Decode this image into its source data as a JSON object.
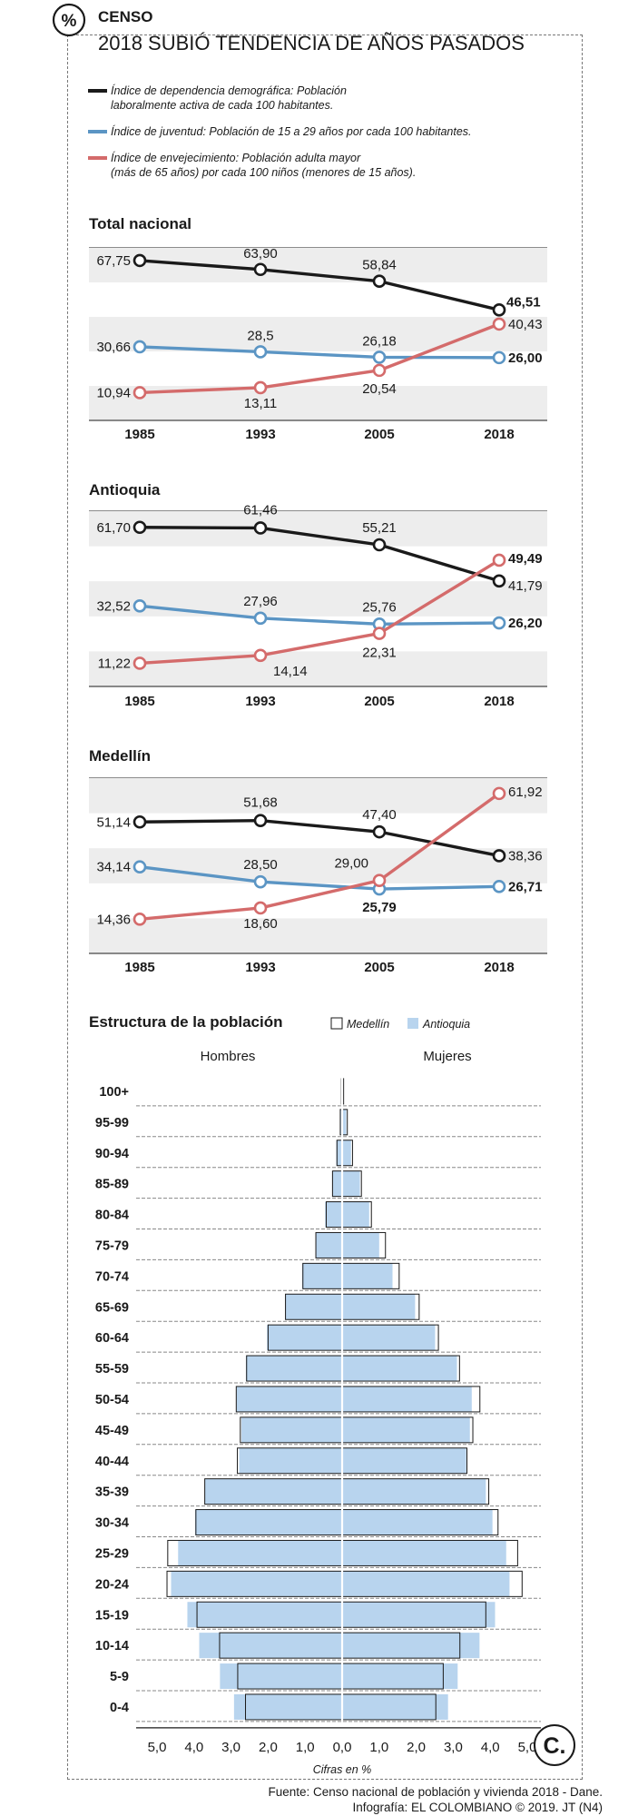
{
  "header": {
    "section": "CENSO",
    "title": "2018 SUBIÓ TENDENCIA DE AÑOS PASADOS",
    "logo_glyph": "%"
  },
  "legend": [
    {
      "key": "dependencia",
      "color": "#1a1a1a",
      "line1": "Índice de dependencia demográfica: Población",
      "line2": "laboralmente activa de cada 100 habitantes."
    },
    {
      "key": "juventud",
      "color": "#5b95c4",
      "line1": "Índice de juventud: Población de 15 a 29 años por cada 100 habitantes.",
      "line2": ""
    },
    {
      "key": "envejecimiento",
      "color": "#d46b6b",
      "line1": "Índice de envejecimiento: Población adulta mayor",
      "line2": "(más de 65 años)  por cada 100 niños (menores de 15 años)."
    }
  ],
  "chart_data": [
    {
      "type": "line",
      "title": "Total nacional",
      "categories": [
        "1985",
        "1993",
        "2005",
        "2018"
      ],
      "series": [
        {
          "name": "Índice de dependencia demográfica",
          "color": "#1a1a1a",
          "values": [
            67.75,
            63.9,
            58.84,
            46.51
          ],
          "labels": [
            "67,75",
            "63,90",
            "58,84",
            "46,51"
          ]
        },
        {
          "name": "Índice de juventud",
          "color": "#5b95c4",
          "values": [
            30.66,
            28.5,
            26.18,
            26.0
          ],
          "labels": [
            "30,66",
            "28,5",
            "26,18",
            "26,00"
          ]
        },
        {
          "name": "Índice de envejecimiento",
          "color": "#d46b6b",
          "values": [
            10.94,
            13.11,
            20.54,
            40.43
          ],
          "labels": [
            "10,94",
            "13,11",
            "20,54",
            "40,43"
          ]
        }
      ]
    },
    {
      "type": "line",
      "title": "Antioquia",
      "categories": [
        "1985",
        "1993",
        "2005",
        "2018"
      ],
      "series": [
        {
          "name": "Índice de dependencia demográfica",
          "color": "#1a1a1a",
          "values": [
            61.7,
            61.46,
            55.21,
            41.79
          ],
          "labels": [
            "61,70",
            "61,46",
            "55,21",
            "41,79"
          ]
        },
        {
          "name": "Índice de juventud",
          "color": "#5b95c4",
          "values": [
            32.52,
            27.96,
            25.76,
            26.2
          ],
          "labels": [
            "32,52",
            "27,96",
            "25,76",
            "26,20"
          ]
        },
        {
          "name": "Índice de envejecimiento",
          "color": "#d46b6b",
          "values": [
            11.22,
            14.14,
            22.31,
            49.49
          ],
          "labels": [
            "11,22",
            "14,14",
            "22,31",
            "49,49"
          ]
        }
      ]
    },
    {
      "type": "line",
      "title": "Medellín",
      "categories": [
        "1985",
        "1993",
        "2005",
        "2018"
      ],
      "series": [
        {
          "name": "Índice de dependencia demográfica",
          "color": "#1a1a1a",
          "values": [
            51.14,
            51.68,
            47.4,
            38.36
          ],
          "labels": [
            "51,14",
            "51,68",
            "47,40",
            "38,36"
          ]
        },
        {
          "name": "Índice de juventud",
          "color": "#5b95c4",
          "values": [
            34.14,
            28.5,
            25.79,
            26.71
          ],
          "labels": [
            "34,14",
            "28,50",
            "25,79",
            "26,71"
          ]
        },
        {
          "name": "Índice de envejecimiento",
          "color": "#d46b6b",
          "values": [
            14.36,
            18.6,
            29.0,
            61.92
          ],
          "labels": [
            "14,36",
            "18,60",
            "29,00",
            "61,92"
          ]
        }
      ]
    },
    {
      "type": "bar",
      "subtype": "population-pyramid",
      "title": "Estructura de la población",
      "legend": [
        {
          "name": "Medellín",
          "color": "#ffffff"
        },
        {
          "name": "Antioquia",
          "color": "#b8d4ee"
        }
      ],
      "left_label": "Hombres",
      "right_label": "Mujeres",
      "xlabel": "Cifras en %",
      "x_ticks": [
        "5,0",
        "4,0",
        "3,0",
        "2,0",
        "1,0",
        "0,0",
        "1,0",
        "2,0",
        "3,0",
        "4,0",
        "5,0"
      ],
      "xlim": [
        -5,
        5
      ],
      "categories": [
        "100+",
        "95-99",
        "90-94",
        "85-89",
        "80-84",
        "75-79",
        "70-74",
        "65-69",
        "60-64",
        "55-59",
        "50-54",
        "45-49",
        "40-44",
        "35-39",
        "30-34",
        "25-29",
        "20-24",
        "15-19",
        "10-14",
        "5-9",
        "0-4"
      ],
      "series": [
        {
          "name": "Antioquia hombres",
          "values": [
            0.02,
            0.06,
            0.16,
            0.27,
            0.46,
            0.71,
            1.08,
            1.54,
            2.03,
            2.6,
            2.85,
            2.72,
            2.78,
            3.7,
            3.97,
            4.43,
            4.62,
            4.18,
            3.86,
            3.3,
            2.92
          ]
        },
        {
          "name": "Antioquia mujeres",
          "values": [
            0.03,
            0.11,
            0.24,
            0.48,
            0.73,
            1.0,
            1.36,
            1.97,
            2.51,
            3.1,
            3.5,
            3.45,
            3.35,
            3.88,
            4.06,
            4.43,
            4.52,
            4.13,
            3.71,
            3.12,
            2.86
          ]
        },
        {
          "name": "Medellín hombres",
          "values": [
            0.02,
            0.05,
            0.14,
            0.26,
            0.43,
            0.71,
            1.06,
            1.53,
            2.0,
            2.58,
            2.86,
            2.75,
            2.83,
            3.71,
            3.95,
            4.71,
            4.73,
            3.92,
            3.31,
            2.82,
            2.61
          ]
        },
        {
          "name": "Medellín mujeres",
          "values": [
            0.04,
            0.14,
            0.28,
            0.52,
            0.79,
            1.17,
            1.54,
            2.08,
            2.6,
            3.17,
            3.72,
            3.53,
            3.37,
            3.96,
            4.21,
            4.74,
            4.86,
            3.88,
            3.18,
            2.73,
            2.53
          ]
        }
      ]
    }
  ],
  "footer": {
    "source": "Fuente: Censo nacional de población y vivienda 2018 - Dane.",
    "credit": "Infografía: EL COLOMBIANO © 2019. JT (N4)",
    "brand_glyph": "C."
  }
}
